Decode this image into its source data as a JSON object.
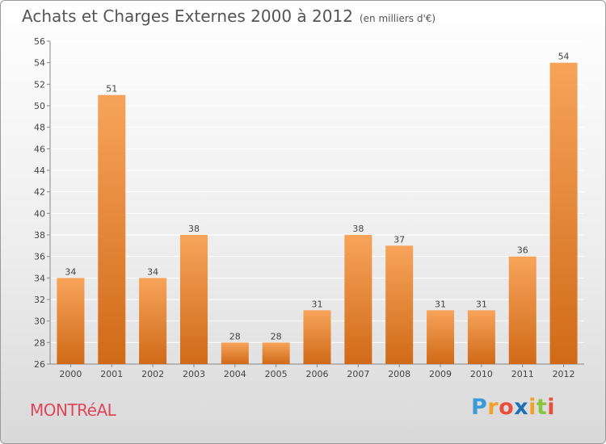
{
  "header": {
    "title": "Achats et Charges Externes 2000 à 2012",
    "unit": "(en milliers d'€)"
  },
  "footer": {
    "city": "MONTRéAL",
    "logo_letters": [
      "P",
      "r",
      "o",
      "x",
      "i",
      "t",
      "i"
    ],
    "logo_colors": [
      "#3a9bd9",
      "#f2a12a",
      "#e94d3c",
      "#1f6fb8",
      "#f2a12a",
      "#8cc63f",
      "#e94d3c"
    ]
  },
  "colors": {
    "bar_top": "#f7a45a",
    "bar_bottom": "#d06a18",
    "axis": "#888888",
    "grid": "#ffffff",
    "label": "#444444",
    "city": "#e0465a"
  },
  "chart_data": {
    "type": "bar",
    "title": "Achats et Charges Externes 2000 à 2012",
    "subtitle": "(en milliers d'€)",
    "categories": [
      "2000",
      "2001",
      "2002",
      "2003",
      "2004",
      "2005",
      "2006",
      "2007",
      "2008",
      "2009",
      "2010",
      "2011",
      "2012"
    ],
    "values": [
      34,
      51,
      34,
      38,
      28,
      28,
      31,
      38,
      37,
      31,
      31,
      36,
      54
    ],
    "ylim": [
      26,
      56
    ],
    "ytick_step": 2,
    "grid": true,
    "data_labels": true
  }
}
